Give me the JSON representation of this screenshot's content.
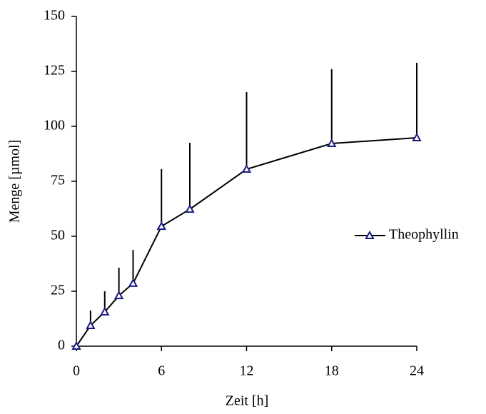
{
  "chart_data": {
    "type": "line",
    "x_label": "Zeit [h]",
    "y_label": "Menge [µmol]",
    "x": [
      0,
      1,
      2,
      3,
      4,
      6,
      8,
      12,
      18,
      24
    ],
    "series": [
      {
        "name": "Theophyllin",
        "color": "#000000",
        "marker_color": "#1a1a80",
        "values": [
          0,
          9.4,
          15.6,
          23,
          28.6,
          54.5,
          62.3,
          80.5,
          92.2,
          94.8
        ],
        "errors": [
          0,
          6.8,
          9.4,
          12.7,
          15.2,
          26,
          30.2,
          35.1,
          33.8,
          34.1
        ]
      }
    ],
    "xlim": [
      0,
      24
    ],
    "xticks": [
      0,
      6,
      12,
      18,
      24
    ],
    "ylim": [
      0,
      150
    ],
    "yticks": [
      0,
      25,
      50,
      75,
      100,
      125,
      150
    ],
    "legend": "right"
  }
}
